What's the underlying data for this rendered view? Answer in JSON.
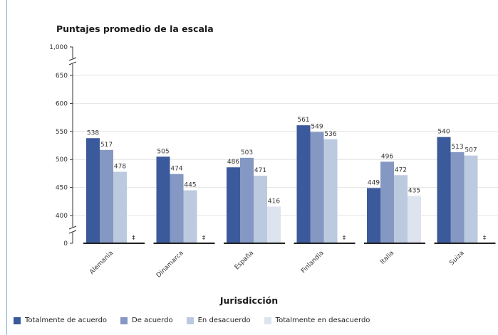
{
  "chart_data": {
    "type": "bar",
    "title": "Puntajes promedio de la escala",
    "xlabel": "Jurisdicción",
    "ylabel": "",
    "y_ticks": [
      "1,000",
      "650",
      "600",
      "550",
      "500",
      "450",
      "400",
      "0"
    ],
    "ylim": [
      350,
      670
    ],
    "axis_break": true,
    "categories": [
      "Alemania",
      "Dinamarca",
      "España",
      "Finlandia",
      "Italia",
      "Suiza"
    ],
    "series": [
      {
        "name": "Totalmente de acuerdo",
        "color": "#3a5a9b",
        "values": [
          538,
          505,
          486,
          561,
          449,
          540
        ]
      },
      {
        "name": "De acuerdo",
        "color": "#8597c3",
        "values": [
          517,
          474,
          503,
          549,
          496,
          513
        ]
      },
      {
        "name": "En desacuerdo",
        "color": "#bccadf",
        "values": [
          478,
          445,
          471,
          536,
          472,
          507
        ]
      },
      {
        "name": "Totalmente en desacuerdo",
        "color": "#dde4ef",
        "values": [
          null,
          null,
          416,
          null,
          435,
          null
        ]
      }
    ],
    "missing_marker": "‡",
    "grid": true,
    "legend_position": "bottom"
  }
}
